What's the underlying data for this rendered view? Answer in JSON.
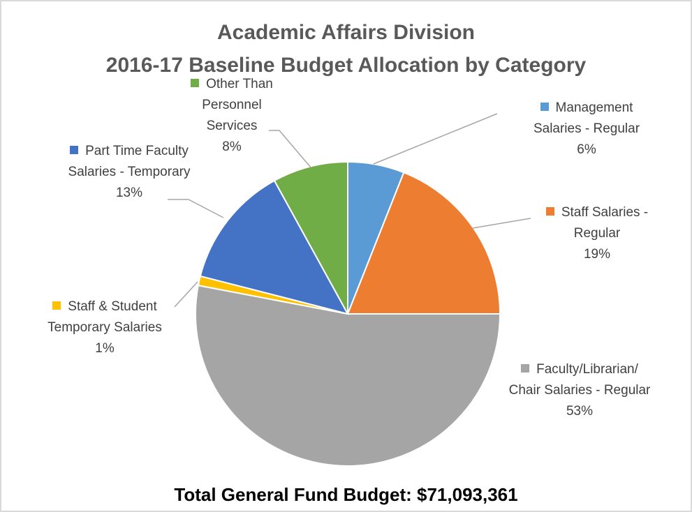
{
  "chart_data": {
    "type": "pie",
    "title": "Academic Affairs Division",
    "subtitle": "2016-17 Baseline Budget Allocation by Category",
    "categories": [
      "Management Salaries - Regular",
      "Staff Salaries - Regular",
      "Faculty/Librarian/ Chair Salaries - Regular",
      "Staff & Student Temporary Salaries",
      "Part Time Faculty Salaries - Temporary",
      "Other Than Personnel Services"
    ],
    "values": [
      6,
      19,
      53,
      1,
      13,
      8
    ],
    "value_labels": [
      "6%",
      "19%",
      "53%",
      "1%",
      "13%",
      "8%"
    ],
    "colors": [
      "#5b9bd5",
      "#ed7d31",
      "#a5a5a5",
      "#ffc000",
      "#4472c4",
      "#70ad47"
    ],
    "annotation": "Total General Fund Budget:  $71,093,361"
  }
}
